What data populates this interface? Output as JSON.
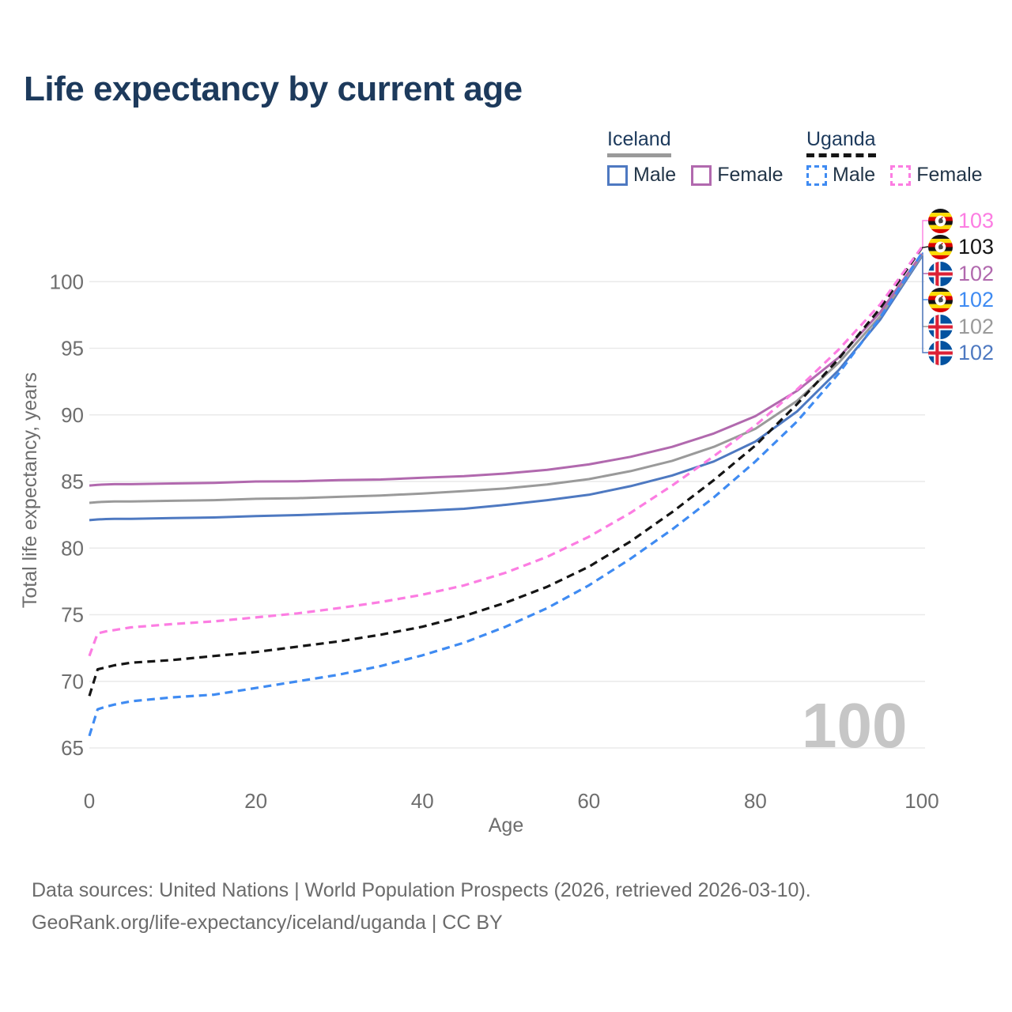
{
  "title": "Life expectancy by current age",
  "legend": {
    "groups": [
      {
        "country": "Iceland",
        "line_style": "solid",
        "underline_color": "#9a9a9a",
        "items": [
          {
            "label": "Male",
            "color": "#4e79c1"
          },
          {
            "label": "Female",
            "color": "#b169ae"
          }
        ]
      },
      {
        "country": "Uganda",
        "line_style": "dashed",
        "underline_color": "#151515",
        "items": [
          {
            "label": "Male",
            "color": "#3f8bf2"
          },
          {
            "label": "Female",
            "color": "#fc7de2"
          }
        ]
      }
    ]
  },
  "chart_data": {
    "type": "line",
    "title": "Life expectancy by current age",
    "xlabel": "Age",
    "ylabel": "Total life expectancy, years",
    "x_ticks": [
      0,
      20,
      40,
      60,
      80,
      100
    ],
    "y_ticks": [
      65,
      70,
      75,
      80,
      85,
      90,
      95,
      100
    ],
    "xlim": [
      0,
      100
    ],
    "ylim": [
      63,
      105
    ],
    "grid": "horizontal",
    "x": [
      0,
      1,
      2,
      3,
      5,
      10,
      15,
      20,
      25,
      30,
      35,
      40,
      45,
      50,
      55,
      60,
      65,
      70,
      75,
      80,
      85,
      90,
      95,
      100
    ],
    "series": [
      {
        "name": "Iceland Male",
        "color": "#4e79c1",
        "dash": false,
        "values": [
          82.1,
          82.15,
          82.18,
          82.2,
          82.2,
          82.25,
          82.3,
          82.4,
          82.48,
          82.58,
          82.68,
          82.8,
          82.95,
          83.25,
          83.6,
          84.0,
          84.65,
          85.45,
          86.5,
          88.0,
          90.25,
          93.35,
          97.15,
          101.9
        ]
      },
      {
        "name": "Iceland",
        "color": "#9a9a9a",
        "dash": false,
        "values": [
          83.4,
          83.45,
          83.48,
          83.5,
          83.5,
          83.55,
          83.6,
          83.7,
          83.75,
          83.85,
          83.95,
          84.1,
          84.28,
          84.48,
          84.78,
          85.18,
          85.78,
          86.55,
          87.6,
          88.95,
          91.05,
          93.9,
          97.4,
          102.0
        ]
      },
      {
        "name": "Iceland Female",
        "color": "#b169ae",
        "dash": false,
        "values": [
          84.7,
          84.75,
          84.78,
          84.8,
          84.8,
          84.85,
          84.9,
          85.0,
          85.02,
          85.1,
          85.15,
          85.28,
          85.4,
          85.6,
          85.88,
          86.28,
          86.85,
          87.6,
          88.6,
          89.9,
          91.8,
          94.3,
          97.7,
          102.1
        ]
      },
      {
        "name": "Uganda Male",
        "color": "#3f8bf2",
        "dash": true,
        "values": [
          65.9,
          67.9,
          68.1,
          68.25,
          68.5,
          68.8,
          69.0,
          69.5,
          70.0,
          70.5,
          71.15,
          71.95,
          72.9,
          74.1,
          75.5,
          77.2,
          79.2,
          81.4,
          83.8,
          86.5,
          89.5,
          93.1,
          97.3,
          102.15
        ]
      },
      {
        "name": "Uganda",
        "color": "#151515",
        "dash": true,
        "values": [
          68.9,
          70.9,
          71.05,
          71.2,
          71.4,
          71.6,
          71.9,
          72.2,
          72.6,
          73.0,
          73.5,
          74.1,
          74.9,
          75.9,
          77.1,
          78.6,
          80.5,
          82.7,
          85.1,
          87.7,
          90.8,
          94.2,
          98.0,
          102.55
        ]
      },
      {
        "name": "Uganda Female",
        "color": "#fc7de2",
        "dash": true,
        "values": [
          71.9,
          73.6,
          73.75,
          73.85,
          74.05,
          74.3,
          74.5,
          74.8,
          75.1,
          75.5,
          75.95,
          76.5,
          77.2,
          78.15,
          79.35,
          80.85,
          82.65,
          84.7,
          86.9,
          89.2,
          91.9,
          94.9,
          98.3,
          102.6
        ]
      }
    ]
  },
  "end_labels": [
    {
      "flag": "uganda",
      "series": "Uganda Female",
      "value": "103",
      "color": "#fc7de2"
    },
    {
      "flag": "uganda",
      "series": "Uganda",
      "value": "103",
      "color": "#151515"
    },
    {
      "flag": "iceland",
      "series": "Iceland Female",
      "value": "102",
      "color": "#b169ae"
    },
    {
      "flag": "uganda",
      "series": "Uganda Male",
      "value": "102",
      "color": "#3f8bf2"
    },
    {
      "flag": "iceland",
      "series": "Iceland",
      "value": "102",
      "color": "#9a9a9a"
    },
    {
      "flag": "iceland",
      "series": "Iceland Male",
      "value": "102",
      "color": "#4e79c1"
    }
  ],
  "age_counter": "100",
  "footer": {
    "line1": "Data sources: United Nations | World Population Prospects (2026, retrieved 2026-03-10).",
    "line2": "GeoRank.org/life-expectancy/iceland/uganda | CC BY"
  }
}
